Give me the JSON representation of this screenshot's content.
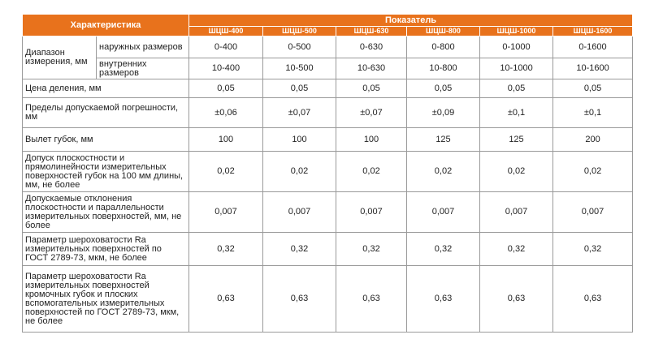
{
  "table": {
    "header": {
      "characteristic": "Характеристика",
      "indicator": "Показатель",
      "models": [
        "ШЦШ-400",
        "ШЦШ-500",
        "ШЦШ-630",
        "ШЦШ-800",
        "ШЦШ-1000",
        "ШЦШ-1600"
      ]
    },
    "range": {
      "label": "Диапазон измерения, мм",
      "rows": [
        {
          "sub": "наружных размеров",
          "values": [
            "0-400",
            "0-500",
            "0-630",
            "0-800",
            "0-1000",
            "0-1600"
          ]
        },
        {
          "sub": "внутренних размеров",
          "values": [
            "10-400",
            "10-500",
            "10-630",
            "10-800",
            "10-1000",
            "10-1600"
          ]
        }
      ]
    },
    "rows": [
      {
        "label": "Цена деления, мм",
        "values": [
          "0,05",
          "0,05",
          "0,05",
          "0,05",
          "0,05",
          "0,05"
        ]
      },
      {
        "label": "Пределы допускаемой погрешности, мм",
        "values": [
          "±0,06",
          "±0,07",
          "±0,07",
          "±0,09",
          "±0,1",
          "±0,1"
        ]
      },
      {
        "label": "Вылет губок, мм",
        "values": [
          "100",
          "100",
          "100",
          "125",
          "125",
          "200"
        ]
      },
      {
        "label": "Допуск плоскостности и прямолинейности измерительных поверхностей губок на 100 мм длины, мм, не более",
        "values": [
          "0,02",
          "0,02",
          "0,02",
          "0,02",
          "0,02",
          "0,02"
        ]
      },
      {
        "label": "Допускаемые отклонения плоскостности и параллельности измерительных поверхностей, мм, не более",
        "values": [
          "0,007",
          "0,007",
          "0,007",
          "0,007",
          "0,007",
          "0,007"
        ]
      },
      {
        "label": "Параметр шероховатости Ra измерительных поверхностей по ГОСТ 2789-73, мкм, не более",
        "values": [
          "0,32",
          "0,32",
          "0,32",
          "0,32",
          "0,32",
          "0,32"
        ]
      },
      {
        "label": "Параметр шероховатости Ra измерительных поверхностей кромочных губок и плоских вспомогательных измерительных поверхностей по ГОСТ 2789-73, мкм, не более",
        "values": [
          "0,63",
          "0,63",
          "0,63",
          "0,63",
          "0,63",
          "0,63"
        ]
      }
    ]
  }
}
